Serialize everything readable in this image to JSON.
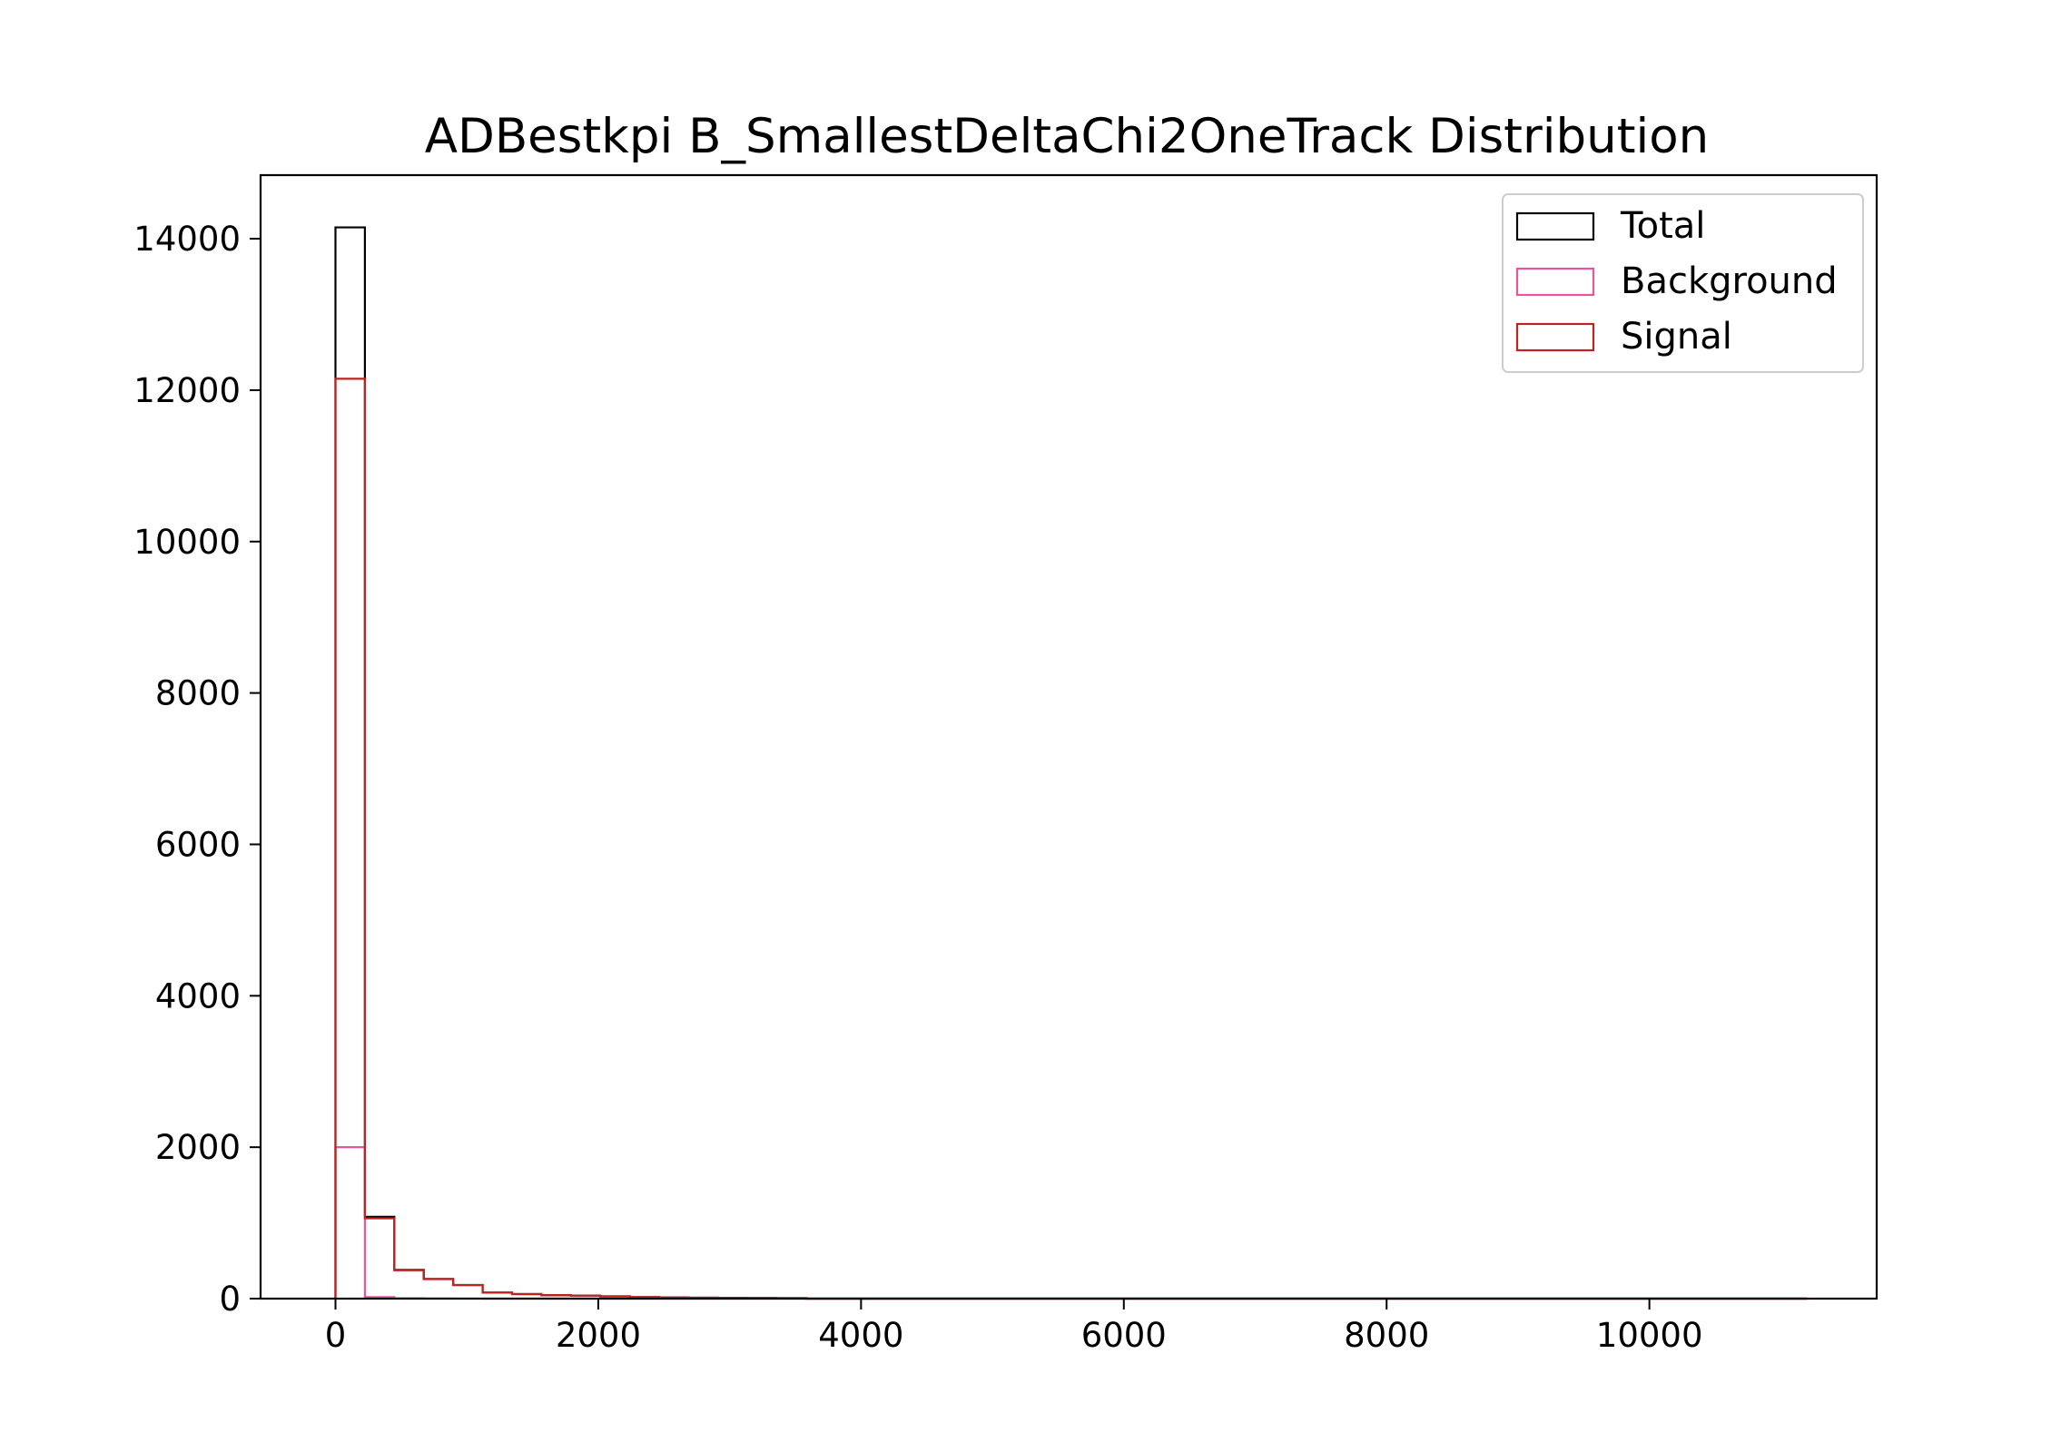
{
  "chart_data": {
    "type": "bar",
    "title": "ADBestkpi B_SmallestDeltaChi2OneTrack Distribution",
    "xlabel": "",
    "ylabel": "",
    "xlim": [
      -570,
      11730
    ],
    "ylim": [
      0,
      14840
    ],
    "xticks": [
      0,
      2000,
      4000,
      6000,
      8000,
      10000
    ],
    "yticks": [
      0,
      2000,
      4000,
      6000,
      8000,
      10000,
      12000,
      14000
    ],
    "bin_edges": [
      0,
      224,
      448,
      672,
      896,
      1120,
      1344,
      1568,
      1792,
      2016,
      2240,
      2464,
      2688,
      2912,
      3136,
      3360,
      3584,
      3808,
      4032,
      4256,
      4480,
      4704,
      4928,
      5152,
      5376,
      5600,
      5824,
      6048,
      6272,
      6496,
      6720,
      6944,
      7168,
      7392,
      7616,
      7840,
      8064,
      8288,
      8512,
      8736,
      8960,
      9184,
      9408,
      9632,
      9856,
      10080,
      10304,
      10528,
      10752,
      10976,
      11200
    ],
    "series": [
      {
        "name": "Total",
        "color": "#000000",
        "values": [
          14150,
          1080,
          380,
          260,
          180,
          80,
          60,
          45,
          40,
          30,
          20,
          15,
          12,
          10,
          8,
          6,
          0,
          0,
          0,
          0,
          0,
          0,
          0,
          0,
          0,
          0,
          0,
          0,
          0,
          0,
          0,
          0,
          0,
          0,
          0,
          0,
          0,
          0,
          0,
          0,
          0,
          0,
          0,
          0,
          0,
          0,
          0,
          0,
          0,
          0
        ]
      },
      {
        "name": "Background",
        "color": "#e8559b",
        "values": [
          2000,
          20,
          5,
          2,
          1,
          0,
          0,
          0,
          0,
          0,
          0,
          0,
          0,
          0,
          0,
          0,
          0,
          0,
          0,
          0,
          0,
          0,
          0,
          0,
          0,
          0,
          0,
          0,
          0,
          0,
          0,
          0,
          0,
          0,
          0,
          0,
          0,
          0,
          0,
          0,
          0,
          0,
          0,
          0,
          0,
          0,
          0,
          0,
          0,
          0
        ]
      },
      {
        "name": "Signal",
        "color": "#c0221e",
        "values": [
          12150,
          1060,
          375,
          258,
          179,
          80,
          60,
          45,
          40,
          30,
          20,
          15,
          12,
          10,
          8,
          6,
          0,
          0,
          0,
          0,
          0,
          0,
          0,
          0,
          0,
          0,
          0,
          0,
          0,
          0,
          0,
          0,
          0,
          0,
          0,
          0,
          0,
          0,
          0,
          0,
          0,
          0,
          0,
          0,
          0,
          0,
          0,
          0,
          0,
          0
        ]
      }
    ],
    "legend_position": "top-right",
    "grid": false
  }
}
